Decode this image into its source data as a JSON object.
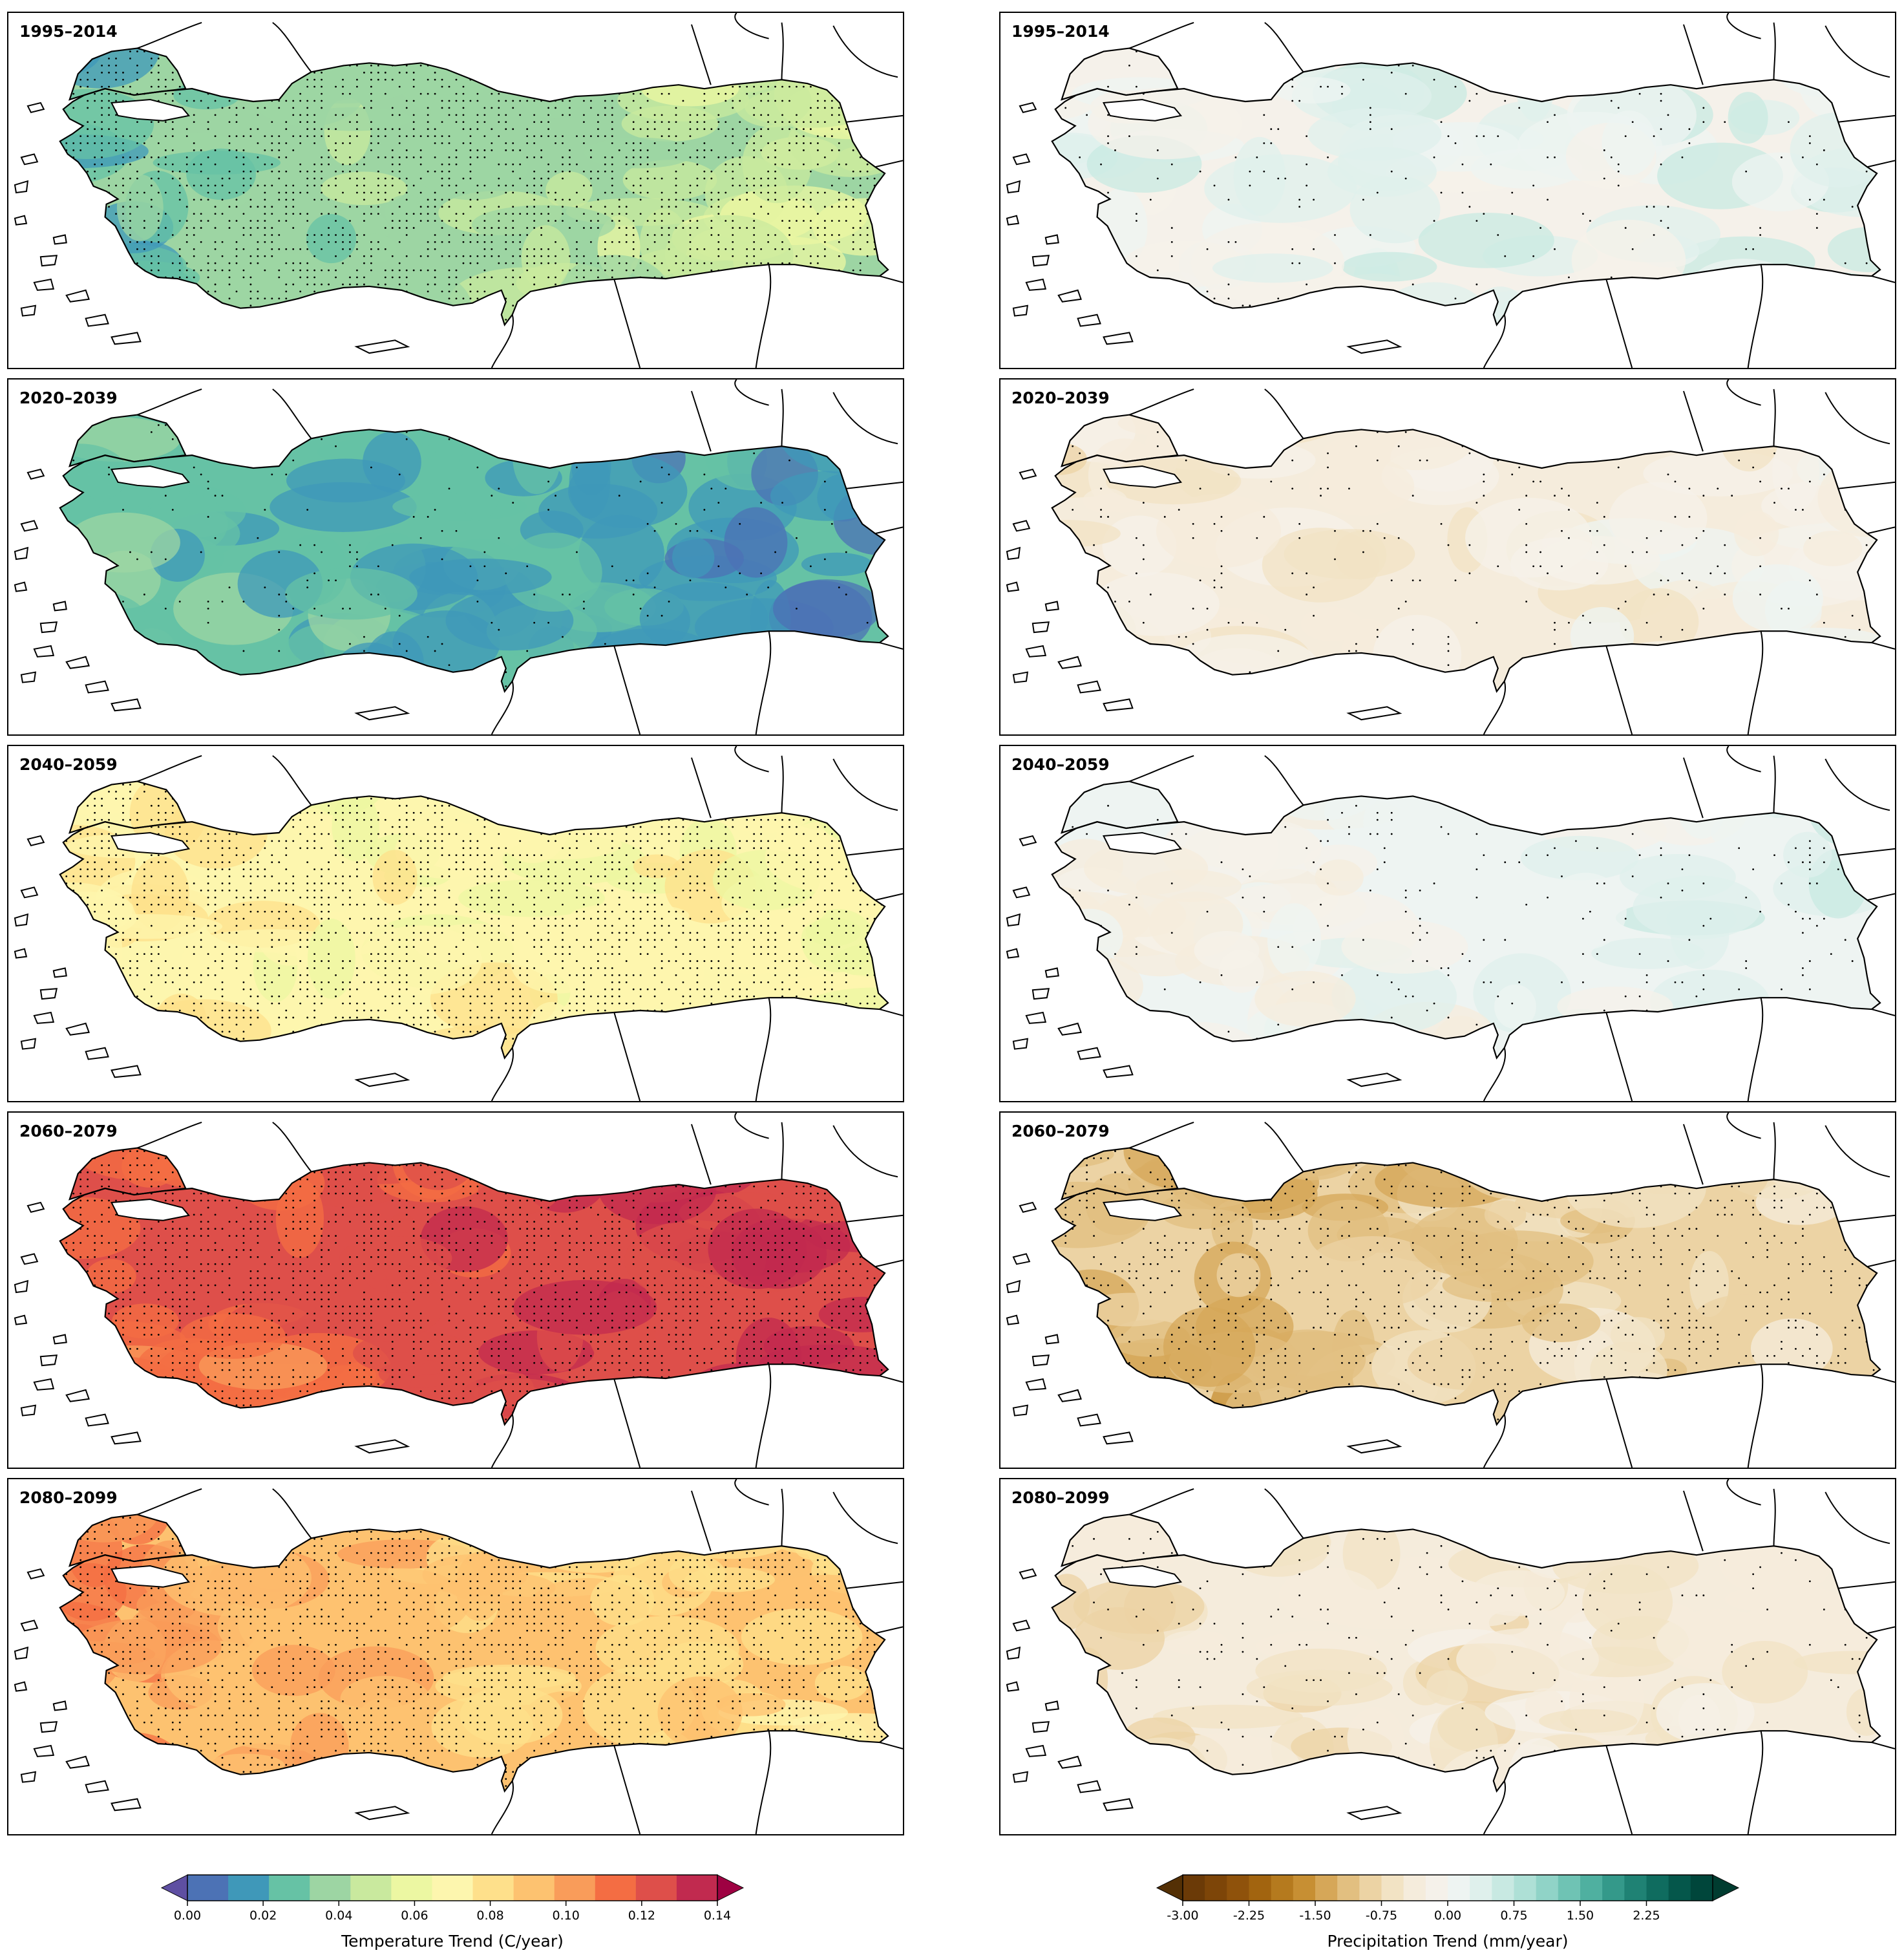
{
  "figure": {
    "periods": [
      "1995–2014",
      "2020–2039",
      "2040–2059",
      "2060–2079",
      "2080–2099"
    ],
    "temperature": {
      "panels": [
        {
          "period": "1995–2014",
          "level_trend": 0.035,
          "west_level": 0.02,
          "east_level": 0.055,
          "stippling": "dense"
        },
        {
          "period": "2020–2039",
          "level_trend": 0.02,
          "west_level": 0.03,
          "east_level": 0.01,
          "stippling": "sparse"
        },
        {
          "period": "2040–2059",
          "level_trend": 0.06,
          "west_level": 0.07,
          "east_level": 0.06,
          "stippling": "dense"
        },
        {
          "period": "2060–2079",
          "level_trend": 0.11,
          "west_level": 0.095,
          "east_level": 0.13,
          "stippling": "dense"
        },
        {
          "period": "2080–2099",
          "level_trend": 0.08,
          "west_level": 0.1,
          "east_level": 0.07,
          "stippling": "dense"
        }
      ],
      "colorbar": {
        "label": "Temperature Trend (C/year)",
        "min": 0.0,
        "max": 0.14,
        "step": 0.01,
        "ticks": [
          "0.00",
          "0.02",
          "0.04",
          "0.06",
          "0.08",
          "0.10",
          "0.12",
          "0.14"
        ],
        "colors": [
          "#4c72b5",
          "#3f98b9",
          "#66c2a5",
          "#9dd5a3",
          "#c9e99e",
          "#ecf7a2",
          "#fdf6ae",
          "#fee08b",
          "#fdc270",
          "#f99c5a",
          "#f46d43",
          "#de4f4a",
          "#c12a4f"
        ],
        "extend_low": "#5e4fa2",
        "extend_high": "#9e0142"
      }
    },
    "precipitation": {
      "panels": [
        {
          "period": "1995–2014",
          "level_trend": -0.2,
          "west_level": 0.2,
          "east_level": 0.3,
          "stippling": "sparse"
        },
        {
          "period": "2020–2039",
          "level_trend": -0.4,
          "west_level": -0.5,
          "east_level": -0.2,
          "stippling": "sparse"
        },
        {
          "period": "2040–2059",
          "level_trend": 0.0,
          "west_level": -0.3,
          "east_level": 0.4,
          "stippling": "sparse"
        },
        {
          "period": "2060–2079",
          "level_trend": -0.9,
          "west_level": -1.4,
          "east_level": -0.5,
          "stippling": "moderate"
        },
        {
          "period": "2080–2099",
          "level_trend": -0.4,
          "west_level": -0.8,
          "east_level": -0.3,
          "stippling": "sparse"
        }
      ],
      "colorbar": {
        "label": "Precipitation Trend (mm/year)",
        "min": -3.0,
        "max": 3.0,
        "step": 0.25,
        "ticks": [
          "-3.00",
          "-2.25",
          "-1.50",
          "-0.75",
          "0.00",
          "0.75",
          "1.50",
          "2.25"
        ],
        "colors": [
          "#6b3a07",
          "#7d4508",
          "#8f520b",
          "#a2640f",
          "#b57a1e",
          "#c78f33",
          "#d6a758",
          "#e2bf80",
          "#ecd3a4",
          "#f2e3c4",
          "#f5ecdc",
          "#f5f1ea",
          "#eef4f2",
          "#dff0ec",
          "#c8e9e2",
          "#aee0d6",
          "#90d3c7",
          "#6fc3b4",
          "#4fb0a0",
          "#34998a",
          "#1f8274",
          "#0f6c5f",
          "#05574b",
          "#00463b"
        ],
        "extend_low": "#543005",
        "extend_high": "#003c30"
      }
    }
  }
}
